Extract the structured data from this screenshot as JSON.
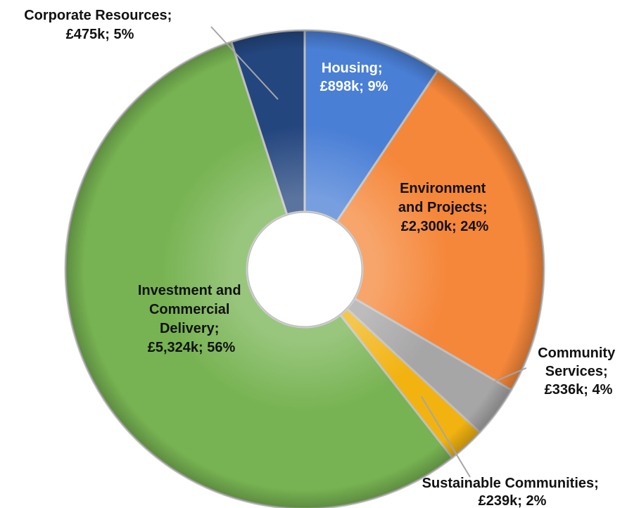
{
  "chart_data": {
    "type": "pie",
    "donut": true,
    "title": "",
    "legend": "none",
    "slices": [
      {
        "name": "Housing",
        "value": 898,
        "label_line1": "Housing;",
        "label_line2": "£898k; 9%",
        "color": "#4a7fd6",
        "label_color": "#ffffff"
      },
      {
        "name": "Environment and Projects",
        "value": 2300,
        "label_line1": "Environment",
        "label_line2": "and Projects;",
        "label_line3": "£2,300k; 24%",
        "color": "#f5873a",
        "label_color": "#111111"
      },
      {
        "name": "Community Services",
        "value": 336,
        "label_line1": "Community",
        "label_line2": "Services;",
        "label_line3": "£336k; 4%",
        "color": "#a6a6a6",
        "label_color": "#111111"
      },
      {
        "name": "Sustainable Communities",
        "value": 239,
        "label_line1": "Sustainable Communities;",
        "label_line2": "£239k; 2%",
        "color": "#f2b311",
        "label_color": "#111111"
      },
      {
        "name": "Investment and Commercial Delivery",
        "value": 5324,
        "label_line1": "Investment and",
        "label_line2": "Commercial",
        "label_line3": "Delivery;",
        "label_line4": "£5,324k; 56%",
        "color": "#77b352",
        "label_color": "#111111"
      },
      {
        "name": "Corporate Resources",
        "value": 475,
        "label_line1": "Corporate Resources;",
        "label_line2": "£475k; 5%",
        "color": "#24467f",
        "label_color": "#111111"
      }
    ]
  }
}
